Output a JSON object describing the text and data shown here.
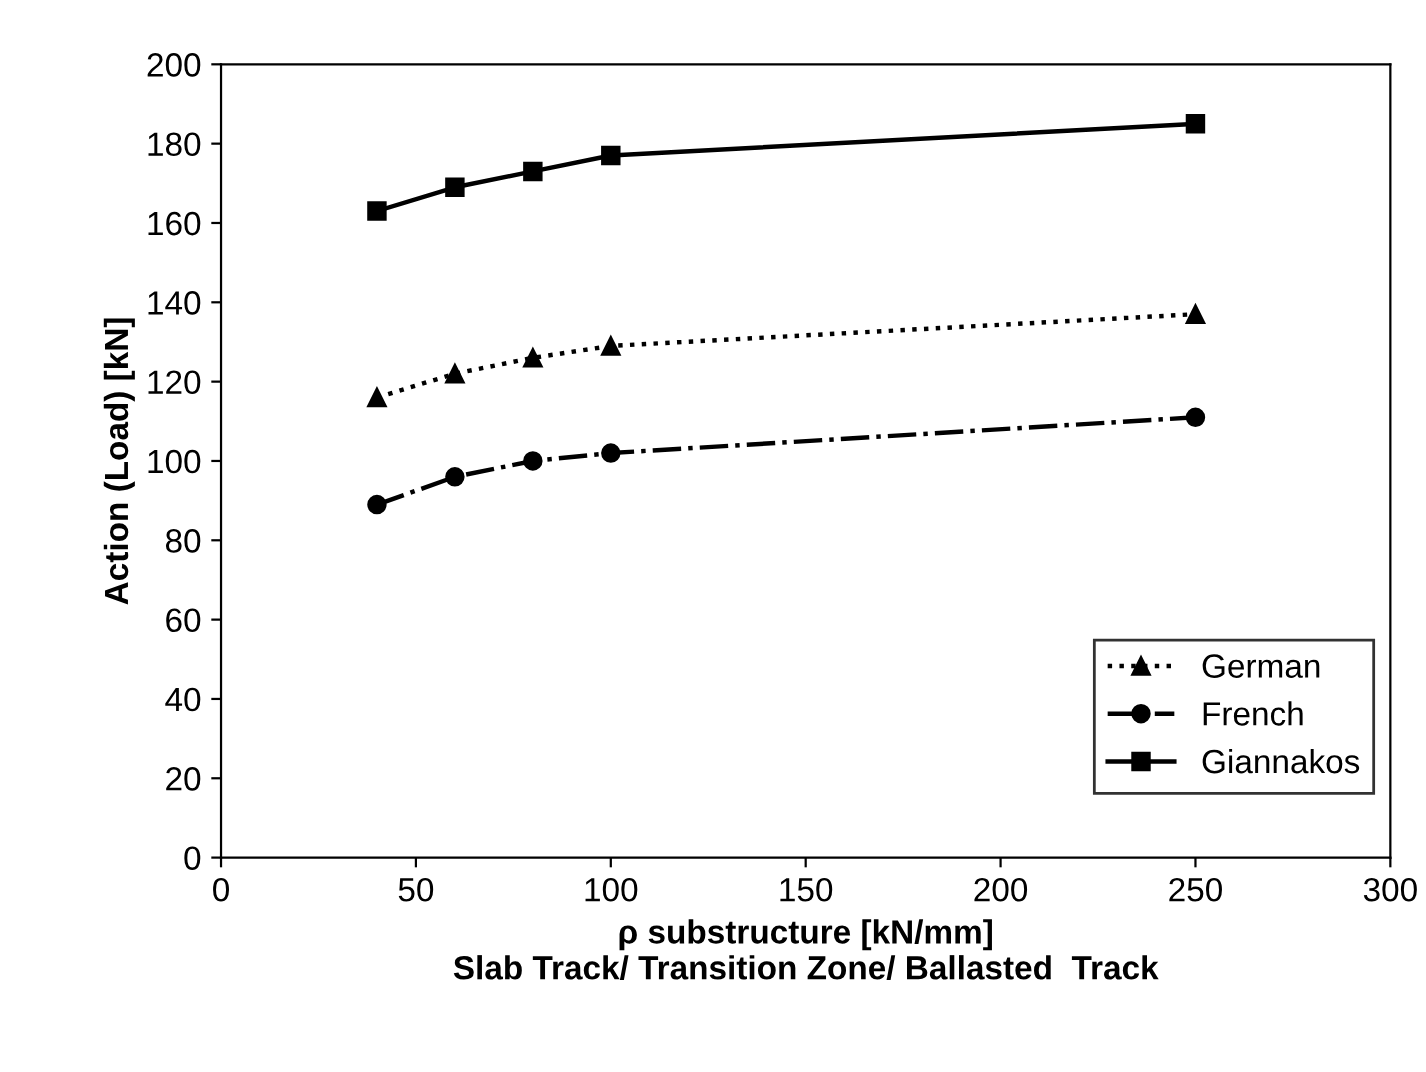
{
  "chart_data": {
    "type": "line",
    "xlabel": "ρ substructure [kN/mm]\nSlab Track/ Transition Zone/ Ballasted  Track",
    "ylabel": "Action (Load) [kN]",
    "x": [
      40,
      60,
      80,
      100,
      250
    ],
    "series": [
      {
        "name": "German",
        "color": "#000000",
        "values": [
          116,
          122,
          126,
          129,
          137
        ],
        "marker": "triangle",
        "line_style": "dotted"
      },
      {
        "name": "French",
        "color": "#000000",
        "values": [
          89,
          96,
          100,
          102,
          111
        ],
        "marker": "circle",
        "line_style": "dashdot"
      },
      {
        "name": "Giannakos",
        "color": "#000000",
        "values": [
          163,
          169,
          173,
          177,
          185
        ],
        "marker": "square",
        "line_style": "solid"
      }
    ],
    "xlim": [
      0,
      300
    ],
    "xticks": [
      0,
      50,
      100,
      150,
      200,
      250,
      300
    ],
    "ylim": [
      0,
      200
    ],
    "yticks": [
      0,
      20,
      40,
      60,
      80,
      100,
      120,
      140,
      160,
      180,
      200
    ],
    "grid": false,
    "legend": "bottom right"
  }
}
